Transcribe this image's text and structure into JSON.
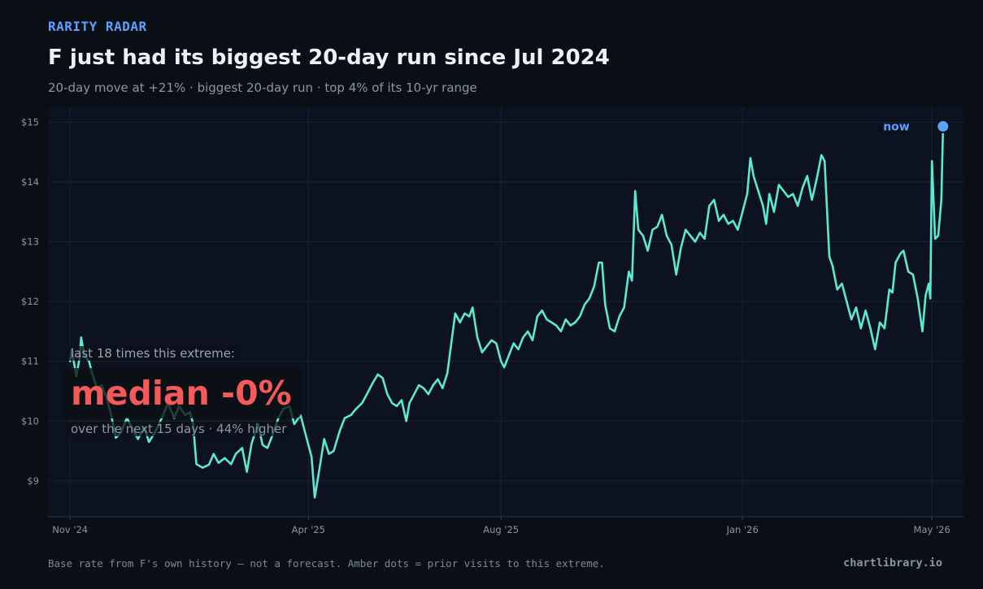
{
  "header": {
    "eyebrow": "RARITY RADAR",
    "title": "F just had its biggest 20-day run since Jul 2024",
    "subtitle": "20-day move at +21%  ·  biggest 20-day run  ·  top 4% of its 10-yr range"
  },
  "callout": {
    "label": "last 18 times this extreme:",
    "big": "median -0%",
    "sub": "over the next 15 days  ·  44% higher"
  },
  "footer": {
    "note": "Base rate from F's own history — not a forecast. Amber dots = prior visits to this extreme.",
    "brand": "chartlibrary.io"
  },
  "colors": {
    "background": "#0a0e15",
    "plot_background": "#0c1220",
    "line": "#5fe8d0",
    "now_marker": "#5aa2ff",
    "accent": "#5aa2ff",
    "callout_value": "#f55a5a"
  },
  "chart_data": {
    "type": "line",
    "title": "",
    "xlabel": "",
    "ylabel": "",
    "ylim": [
      8.4,
      15.25
    ],
    "xlim": [
      "2024-10-18",
      "2026-05-21"
    ],
    "grid": true,
    "y_ticks": [
      9,
      10,
      11,
      12,
      13,
      14,
      15
    ],
    "y_tick_labels": [
      "$9",
      "$10",
      "$11",
      "$12",
      "$13",
      "$14",
      "$15"
    ],
    "x_ticks": [
      "2024-11-01",
      "2025-04-01",
      "2025-08-01",
      "2026-01-01",
      "2026-05-01"
    ],
    "x_tick_labels": [
      "Nov '24",
      "Apr '25",
      "Aug '25",
      "Jan '26",
      "May '26"
    ],
    "now_label": "now",
    "series": [
      {
        "points": [
          [
            "2024-11-01",
            11.0
          ],
          [
            "2024-11-02",
            11.2
          ],
          [
            "2024-11-04",
            10.9
          ],
          [
            "2024-11-05",
            10.75
          ],
          [
            "2024-11-07",
            11.05
          ],
          [
            "2024-11-08",
            11.4
          ],
          [
            "2024-11-10",
            11.1
          ],
          [
            "2024-11-13",
            11.0
          ],
          [
            "2024-11-15",
            10.8
          ],
          [
            "2024-11-18",
            10.55
          ],
          [
            "2024-11-21",
            10.6
          ],
          [
            "2024-11-24",
            10.4
          ],
          [
            "2024-11-27",
            10.1
          ],
          [
            "2024-11-30",
            9.72
          ],
          [
            "2024-12-03",
            9.8
          ],
          [
            "2024-12-07",
            10.05
          ],
          [
            "2024-12-11",
            9.85
          ],
          [
            "2024-12-14",
            9.7
          ],
          [
            "2024-12-18",
            9.9
          ],
          [
            "2024-12-21",
            9.65
          ],
          [
            "2024-12-25",
            9.82
          ],
          [
            "2024-12-30",
            10.1
          ],
          [
            "2025-01-02",
            10.3
          ],
          [
            "2025-01-06",
            10.05
          ],
          [
            "2025-01-09",
            10.25
          ],
          [
            "2025-01-13",
            10.1
          ],
          [
            "2025-01-16",
            10.15
          ],
          [
            "2025-01-18",
            9.95
          ],
          [
            "2025-01-20",
            9.28
          ],
          [
            "2025-01-24",
            9.22
          ],
          [
            "2025-01-28",
            9.27
          ],
          [
            "2025-01-31",
            9.45
          ],
          [
            "2025-02-03",
            9.3
          ],
          [
            "2025-02-07",
            9.38
          ],
          [
            "2025-02-11",
            9.28
          ],
          [
            "2025-02-14",
            9.45
          ],
          [
            "2025-02-18",
            9.55
          ],
          [
            "2025-02-21",
            9.15
          ],
          [
            "2025-02-24",
            9.62
          ],
          [
            "2025-02-28",
            9.95
          ],
          [
            "2025-03-03",
            9.6
          ],
          [
            "2025-03-06",
            9.55
          ],
          [
            "2025-03-09",
            9.75
          ],
          [
            "2025-03-13",
            10.05
          ],
          [
            "2025-03-16",
            10.2
          ],
          [
            "2025-03-20",
            10.25
          ],
          [
            "2025-03-23",
            9.95
          ],
          [
            "2025-03-27",
            10.1
          ],
          [
            "2025-04-01",
            9.6
          ],
          [
            "2025-04-03",
            9.4
          ],
          [
            "2025-04-05",
            8.72
          ],
          [
            "2025-04-08",
            9.2
          ],
          [
            "2025-04-11",
            9.7
          ],
          [
            "2025-04-14",
            9.45
          ],
          [
            "2025-04-17",
            9.5
          ],
          [
            "2025-04-21",
            9.85
          ],
          [
            "2025-04-24",
            10.05
          ],
          [
            "2025-04-28",
            10.1
          ],
          [
            "2025-05-01",
            10.2
          ],
          [
            "2025-05-05",
            10.3
          ],
          [
            "2025-05-08",
            10.45
          ],
          [
            "2025-05-12",
            10.65
          ],
          [
            "2025-05-15",
            10.78
          ],
          [
            "2025-05-18",
            10.72
          ],
          [
            "2025-05-21",
            10.45
          ],
          [
            "2025-05-24",
            10.3
          ],
          [
            "2025-05-27",
            10.25
          ],
          [
            "2025-05-30",
            10.35
          ],
          [
            "2025-06-02",
            10.0
          ],
          [
            "2025-06-04",
            10.3
          ],
          [
            "2025-06-07",
            10.45
          ],
          [
            "2025-06-10",
            10.6
          ],
          [
            "2025-06-13",
            10.55
          ],
          [
            "2025-06-16",
            10.45
          ],
          [
            "2025-06-19",
            10.6
          ],
          [
            "2025-06-22",
            10.7
          ],
          [
            "2025-06-25",
            10.55
          ],
          [
            "2025-06-28",
            10.8
          ],
          [
            "2025-07-01",
            11.4
          ],
          [
            "2025-07-03",
            11.8
          ],
          [
            "2025-07-06",
            11.65
          ],
          [
            "2025-07-09",
            11.8
          ],
          [
            "2025-07-12",
            11.75
          ],
          [
            "2025-07-14",
            11.9
          ],
          [
            "2025-07-17",
            11.4
          ],
          [
            "2025-07-20",
            11.15
          ],
          [
            "2025-07-23",
            11.25
          ],
          [
            "2025-07-26",
            11.35
          ],
          [
            "2025-07-29",
            11.3
          ],
          [
            "2025-08-01",
            11.0
          ],
          [
            "2025-08-03",
            10.9
          ],
          [
            "2025-08-06",
            11.1
          ],
          [
            "2025-08-09",
            11.3
          ],
          [
            "2025-08-12",
            11.2
          ],
          [
            "2025-08-15",
            11.4
          ],
          [
            "2025-08-18",
            11.5
          ],
          [
            "2025-08-21",
            11.35
          ],
          [
            "2025-08-24",
            11.75
          ],
          [
            "2025-08-27",
            11.85
          ],
          [
            "2025-08-30",
            11.7
          ],
          [
            "2025-09-02",
            11.65
          ],
          [
            "2025-09-05",
            11.6
          ],
          [
            "2025-09-08",
            11.5
          ],
          [
            "2025-09-11",
            11.7
          ],
          [
            "2025-09-14",
            11.6
          ],
          [
            "2025-09-17",
            11.65
          ],
          [
            "2025-09-20",
            11.75
          ],
          [
            "2025-09-23",
            11.95
          ],
          [
            "2025-09-26",
            12.05
          ],
          [
            "2025-09-29",
            12.25
          ],
          [
            "2025-10-02",
            12.65
          ],
          [
            "2025-10-04",
            12.65
          ],
          [
            "2025-10-06",
            11.95
          ],
          [
            "2025-10-09",
            11.55
          ],
          [
            "2025-10-12",
            11.5
          ],
          [
            "2025-10-15",
            11.75
          ],
          [
            "2025-10-18",
            11.9
          ],
          [
            "2025-10-21",
            12.5
          ],
          [
            "2025-10-23",
            12.35
          ],
          [
            "2025-10-25",
            13.85
          ],
          [
            "2025-10-27",
            13.2
          ],
          [
            "2025-10-30",
            13.1
          ],
          [
            "2025-11-02",
            12.85
          ],
          [
            "2025-11-05",
            13.2
          ],
          [
            "2025-11-08",
            13.25
          ],
          [
            "2025-11-11",
            13.45
          ],
          [
            "2025-11-14",
            13.1
          ],
          [
            "2025-11-17",
            12.95
          ],
          [
            "2025-11-20",
            12.45
          ],
          [
            "2025-11-23",
            12.9
          ],
          [
            "2025-11-26",
            13.2
          ],
          [
            "2025-11-29",
            13.1
          ],
          [
            "2025-12-02",
            13.0
          ],
          [
            "2025-12-05",
            13.15
          ],
          [
            "2025-12-08",
            13.05
          ],
          [
            "2025-12-11",
            13.6
          ],
          [
            "2025-12-14",
            13.7
          ],
          [
            "2025-12-17",
            13.35
          ],
          [
            "2025-12-20",
            13.45
          ],
          [
            "2025-12-23",
            13.3
          ],
          [
            "2025-12-26",
            13.35
          ],
          [
            "2025-12-29",
            13.2
          ],
          [
            "2026-01-01",
            13.5
          ],
          [
            "2026-01-04",
            13.8
          ],
          [
            "2026-01-06",
            14.4
          ],
          [
            "2026-01-08",
            14.1
          ],
          [
            "2026-01-11",
            13.85
          ],
          [
            "2026-01-14",
            13.6
          ],
          [
            "2026-01-16",
            13.3
          ],
          [
            "2026-01-18",
            13.8
          ],
          [
            "2026-01-21",
            13.5
          ],
          [
            "2026-01-24",
            13.95
          ],
          [
            "2026-01-27",
            13.85
          ],
          [
            "2026-01-30",
            13.75
          ],
          [
            "2026-02-02",
            13.8
          ],
          [
            "2026-02-05",
            13.6
          ],
          [
            "2026-02-08",
            13.9
          ],
          [
            "2026-02-11",
            14.1
          ],
          [
            "2026-02-14",
            13.7
          ],
          [
            "2026-02-17",
            14.05
          ],
          [
            "2026-02-20",
            14.45
          ],
          [
            "2026-02-22",
            14.35
          ],
          [
            "2026-02-25",
            12.75
          ],
          [
            "2026-02-27",
            12.6
          ],
          [
            "2026-03-02",
            12.2
          ],
          [
            "2026-03-05",
            12.3
          ],
          [
            "2026-03-08",
            12.0
          ],
          [
            "2026-03-11",
            11.7
          ],
          [
            "2026-03-14",
            11.9
          ],
          [
            "2026-03-17",
            11.55
          ],
          [
            "2026-03-20",
            11.85
          ],
          [
            "2026-03-23",
            11.55
          ],
          [
            "2026-03-26",
            11.2
          ],
          [
            "2026-03-29",
            11.65
          ],
          [
            "2026-04-01",
            11.55
          ],
          [
            "2026-04-04",
            12.2
          ],
          [
            "2026-04-06",
            12.15
          ],
          [
            "2026-04-08",
            12.65
          ],
          [
            "2026-04-11",
            12.8
          ],
          [
            "2026-04-13",
            12.85
          ],
          [
            "2026-04-16",
            12.5
          ],
          [
            "2026-04-19",
            12.45
          ],
          [
            "2026-04-22",
            12.05
          ],
          [
            "2026-04-25",
            11.5
          ],
          [
            "2026-04-27",
            12.1
          ],
          [
            "2026-04-29",
            12.3
          ],
          [
            "2026-04-30",
            12.05
          ],
          [
            "2026-05-01",
            14.35
          ],
          [
            "2026-05-03",
            13.05
          ],
          [
            "2026-05-05",
            13.1
          ],
          [
            "2026-05-07",
            13.7
          ],
          [
            "2026-05-08",
            14.9
          ]
        ]
      }
    ],
    "now_point": [
      "2026-05-08",
      14.93
    ]
  }
}
